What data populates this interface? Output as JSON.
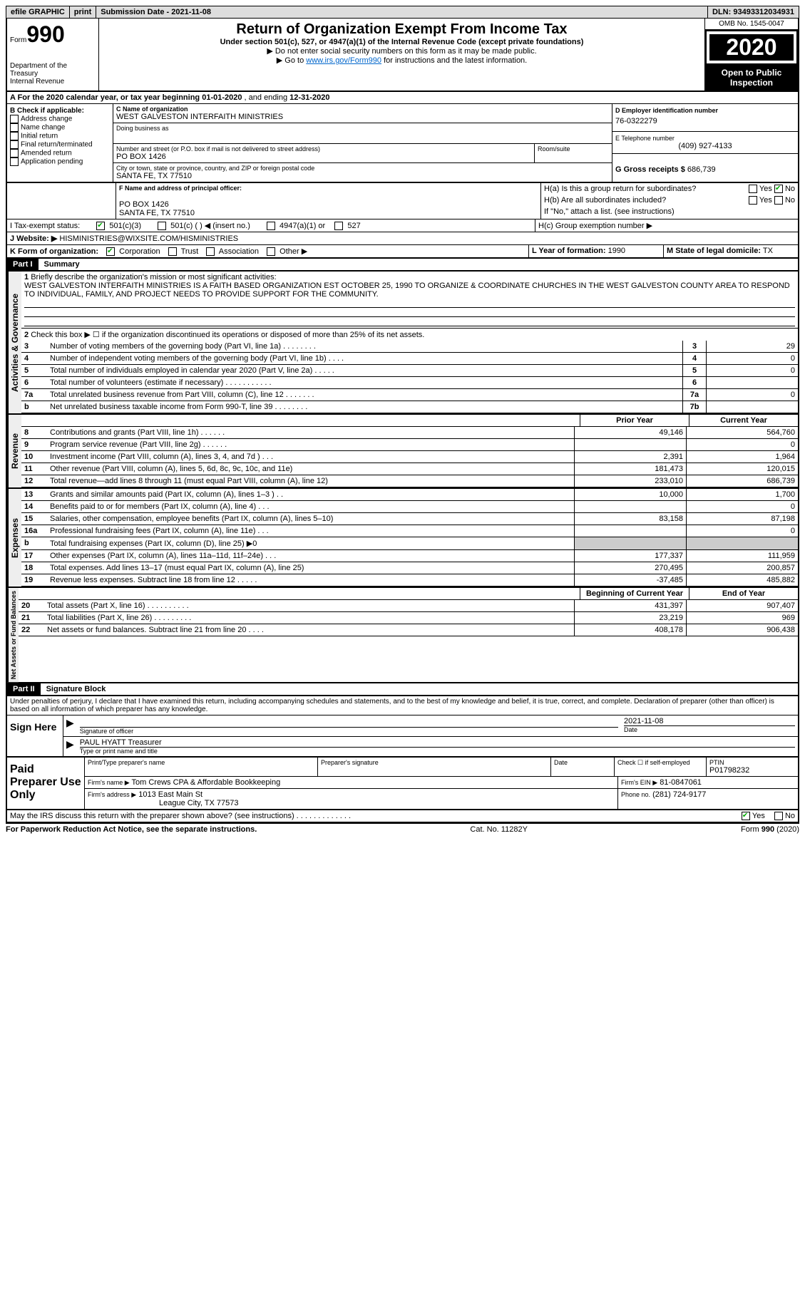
{
  "topbar": {
    "efile": "efile GRAPHIC",
    "print": "print",
    "sub_label": "Submission Date -",
    "sub_date": "2021-11-08",
    "dln_label": "DLN:",
    "dln": "93493312034931"
  },
  "header": {
    "form": "Form",
    "num": "990",
    "dept": "Department of the Treasury\nInternal Revenue",
    "title": "Return of Organization Exempt From Income Tax",
    "sub1": "Under section 501(c), 527, or 4947(a)(1) of the Internal Revenue Code (except private foundations)",
    "sub2": "▶ Do not enter social security numbers on this form as it may be made public.",
    "sub3_pre": "▶ Go to ",
    "sub3_link": "www.irs.gov/Form990",
    "sub3_post": " for instructions and the latest information.",
    "omb": "OMB No. 1545-0047",
    "year": "2020",
    "open": "Open to Public Inspection"
  },
  "lineA": {
    "text_pre": "A For the 2020 calendar year, or tax year beginning ",
    "begin": "01-01-2020",
    "mid": " , and ending ",
    "end": "12-31-2020"
  },
  "boxB": {
    "title": "B Check if applicable:",
    "items": [
      "Address change",
      "Name change",
      "Initial return",
      "Final return/terminated",
      "Amended return",
      "Application pending"
    ]
  },
  "boxC": {
    "label": "C Name of organization",
    "name": "WEST GALVESTON INTERFAITH MINISTRIES",
    "dba_label": "Doing business as",
    "street_label": "Number and street (or P.O. box if mail is not delivered to street address)",
    "room_label": "Room/suite",
    "street": "PO BOX 1426",
    "city_label": "City or town, state or province, country, and ZIP or foreign postal code",
    "city": "SANTA FE, TX  77510"
  },
  "boxD": {
    "label": "D Employer identification number",
    "ein": "76-0322279"
  },
  "boxE": {
    "label": "E Telephone number",
    "phone": "(409) 927-4133"
  },
  "boxG": {
    "label": "G Gross receipts $",
    "val": "686,739"
  },
  "boxF": {
    "label": "F Name and address of principal officer:",
    "addr1": "PO BOX 1426",
    "addr2": "SANTA FE, TX  77510"
  },
  "boxH": {
    "a": "H(a)  Is this a group return for subordinates?",
    "b": "H(b)  Are all subordinates included?",
    "b2": "If \"No,\" attach a list. (see instructions)",
    "c": "H(c)  Group exemption number ▶",
    "yes": "Yes",
    "no": "No"
  },
  "lineI": {
    "label": "I     Tax-exempt status:",
    "opts": [
      "501(c)(3)",
      "501(c) (  ) ◀ (insert no.)",
      "4947(a)(1) or",
      "527"
    ]
  },
  "lineJ": {
    "label": "J     Website: ▶",
    "val": "HISMINISTRIES@WIXSITE.COM/HISMINISTRIES"
  },
  "lineK": {
    "label": "K Form of organization:",
    "opts": [
      "Corporation",
      "Trust",
      "Association",
      "Other ▶"
    ]
  },
  "lineL": {
    "label": "L Year of formation:",
    "val": "1990"
  },
  "lineM": {
    "label": "M State of legal domicile:",
    "val": "TX"
  },
  "part1": {
    "num": "Part I",
    "title": "Summary",
    "q1_num": "1",
    "q1": "Briefly describe the organization's mission or most significant activities:",
    "q1_val": "WEST GALVESTON INTERFAITH MINISTRIES IS A FAITH BASED ORGANIZATION EST OCTOBER 25, 1990 TO ORGANIZE & COORDINATE CHURCHES IN THE WEST GALVESTON COUNTY AREA TO RESPOND TO INDIVIDUAL, FAMILY, AND PROJECT NEEDS TO PROVIDE SUPPORT FOR THE COMMUNITY.",
    "q2_num": "2",
    "q2": "Check this box ▶ ☐ if the organization discontinued its operations or disposed of more than 25% of its net assets."
  },
  "gov_lines": [
    {
      "n": "3",
      "label": "Number of voting members of the governing body (Part VI, line 1a)  .  .  .  .  .  .  .  .",
      "box": "3",
      "val": "29"
    },
    {
      "n": "4",
      "label": "Number of independent voting members of the governing body (Part VI, line 1b)  .  .  .  .",
      "box": "4",
      "val": "0"
    },
    {
      "n": "5",
      "label": "Total number of individuals employed in calendar year 2020 (Part V, line 2a)  .  .  .  .  .",
      "box": "5",
      "val": "0"
    },
    {
      "n": "6",
      "label": "Total number of volunteers (estimate if necessary)  .  .  .  .  .  .  .  .  .  .  .",
      "box": "6",
      "val": ""
    },
    {
      "n": "7a",
      "label": "Total unrelated business revenue from Part VIII, column (C), line 12  .  .  .  .  .  .  .",
      "box": "7a",
      "val": "0"
    },
    {
      "n": "b",
      "label": "Net unrelated business taxable income from Form 990-T, line 39  .  .  .  .  .  .  .  .",
      "box": "7b",
      "val": ""
    }
  ],
  "col_headers": {
    "prior": "Prior Year",
    "current": "Current Year",
    "begin": "Beginning of Current Year",
    "end": "End of Year"
  },
  "revenue_lines": [
    {
      "n": "8",
      "label": "Contributions and grants (Part VIII, line 1h)  .  .  .  .  .  .",
      "p": "49,146",
      "c": "564,760"
    },
    {
      "n": "9",
      "label": "Program service revenue (Part VIII, line 2g)  .  .  .  .  .  .",
      "p": "",
      "c": "0"
    },
    {
      "n": "10",
      "label": "Investment income (Part VIII, column (A), lines 3, 4, and 7d )  .  .  .",
      "p": "2,391",
      "c": "1,964"
    },
    {
      "n": "11",
      "label": "Other revenue (Part VIII, column (A), lines 5, 6d, 8c, 9c, 10c, and 11e)",
      "p": "181,473",
      "c": "120,015"
    },
    {
      "n": "12",
      "label": "Total revenue—add lines 8 through 11 (must equal Part VIII, column (A), line 12)",
      "p": "233,010",
      "c": "686,739"
    }
  ],
  "expense_lines": [
    {
      "n": "13",
      "label": "Grants and similar amounts paid (Part IX, column (A), lines 1–3 )  .  .",
      "p": "10,000",
      "c": "1,700"
    },
    {
      "n": "14",
      "label": "Benefits paid to or for members (Part IX, column (A), line 4)  .  .  .",
      "p": "",
      "c": "0"
    },
    {
      "n": "15",
      "label": "Salaries, other compensation, employee benefits (Part IX, column (A), lines 5–10)",
      "p": "83,158",
      "c": "87,198"
    },
    {
      "n": "16a",
      "label": "Professional fundraising fees (Part IX, column (A), line 11e)  .  .  .",
      "p": "",
      "c": "0"
    },
    {
      "n": "b",
      "label": "Total fundraising expenses (Part IX, column (D), line 25) ▶0",
      "p": "grey",
      "c": "grey"
    },
    {
      "n": "17",
      "label": "Other expenses (Part IX, column (A), lines 11a–11d, 11f–24e)  .  .  .",
      "p": "177,337",
      "c": "111,959"
    },
    {
      "n": "18",
      "label": "Total expenses. Add lines 13–17 (must equal Part IX, column (A), line 25)",
      "p": "270,495",
      "c": "200,857"
    },
    {
      "n": "19",
      "label": "Revenue less expenses. Subtract line 18 from line 12  .  .  .  .  .",
      "p": "-37,485",
      "c": "485,882"
    }
  ],
  "net_lines": [
    {
      "n": "20",
      "label": "Total assets (Part X, line 16)  .  .  .  .  .  .  .  .  .  .",
      "p": "431,397",
      "c": "907,407"
    },
    {
      "n": "21",
      "label": "Total liabilities (Part X, line 26)  .  .  .  .  .  .  .  .  .",
      "p": "23,219",
      "c": "969"
    },
    {
      "n": "22",
      "label": "Net assets or fund balances. Subtract line 21 from line 20  .  .  .  .",
      "p": "408,178",
      "c": "906,438"
    }
  ],
  "side_labels": {
    "gov": "Activities & Governance",
    "rev": "Revenue",
    "exp": "Expenses",
    "net": "Net Assets or Fund Balances"
  },
  "part2": {
    "num": "Part II",
    "title": "Signature Block",
    "decl": "Under penalties of perjury, I declare that I have examined this return, including accompanying schedules and statements, and to the best of my knowledge and belief, it is true, correct, and complete. Declaration of preparer (other than officer) is based on all information of which preparer has any knowledge."
  },
  "sign": {
    "title": "Sign Here",
    "sig_label": "Signature of officer",
    "date": "2021-11-08",
    "date_label": "Date",
    "name": "PAUL HYATT Treasurer",
    "name_label": "Type or print name and title"
  },
  "paid": {
    "title": "Paid Preparer Use Only",
    "h_name": "Print/Type preparer's name",
    "h_sig": "Preparer's signature",
    "h_date": "Date",
    "check": "Check ☐ if self-employed",
    "ptin_label": "PTIN",
    "ptin": "P01798232",
    "firm_label": "Firm's name   ▶",
    "firm": "Tom Crews CPA & Affordable Bookkeeping",
    "ein_label": "Firm's EIN ▶",
    "ein": "81-0847061",
    "addr_label": "Firm's address ▶",
    "addr1": "1013 East Main St",
    "addr2": "League City, TX  77573",
    "phone_label": "Phone no.",
    "phone": "(281) 724-9177"
  },
  "discuss": {
    "label": "May the IRS discuss this return with the preparer shown above? (see instructions)  .  .  .  .  .  .  .  .  .  .  .  .  .",
    "yes": "Yes",
    "no": "No"
  },
  "footer": {
    "left": "For Paperwork Reduction Act Notice, see the separate instructions.",
    "mid": "Cat. No. 11282Y",
    "right": "Form 990 (2020)"
  },
  "colors": {
    "link": "#0066cc",
    "check": "#00aa00"
  }
}
